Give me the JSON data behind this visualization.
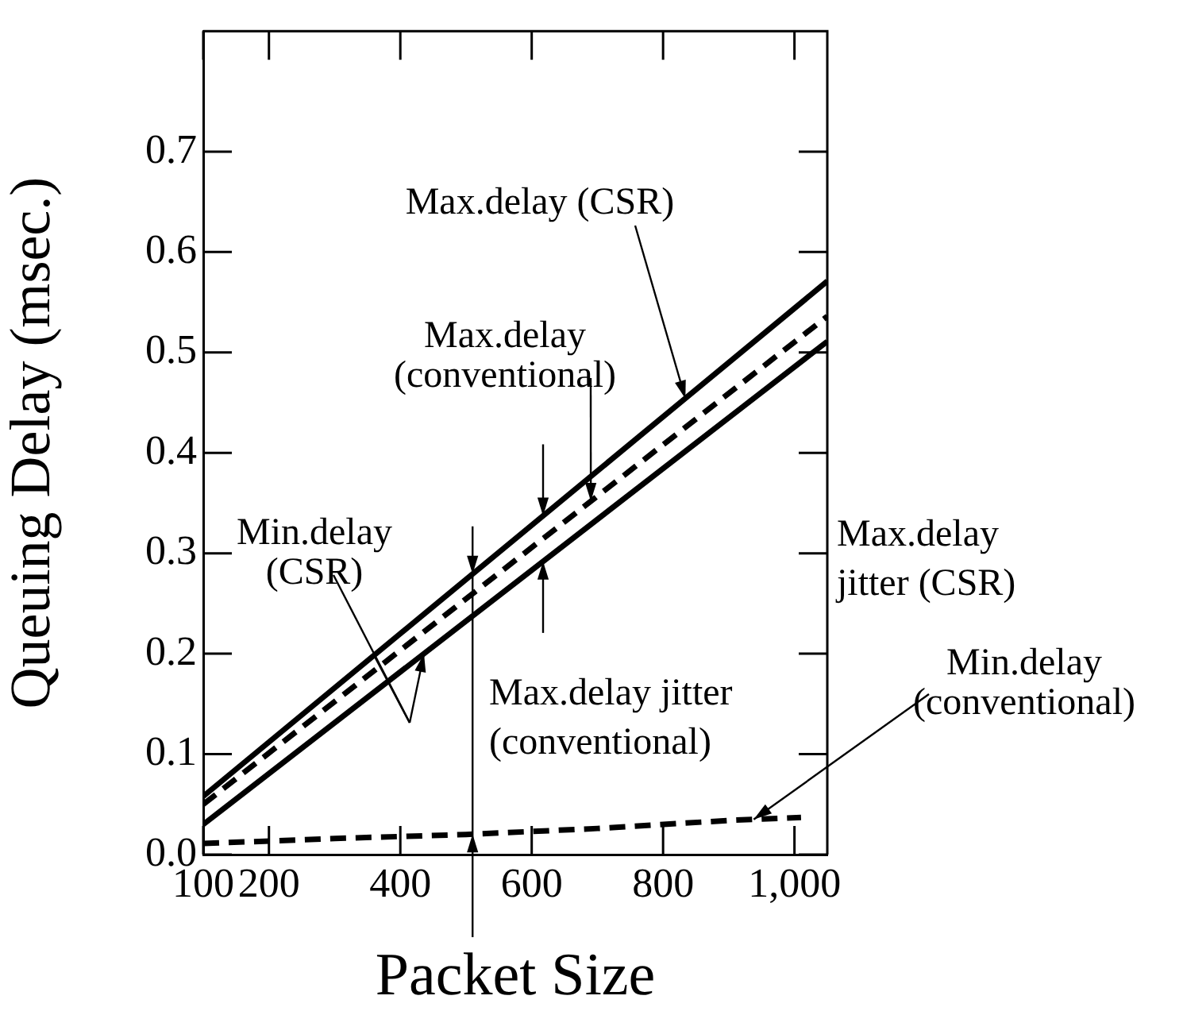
{
  "chart_data": {
    "type": "line",
    "xlabel": "Packet Size",
    "ylabel": "Queuing Delay (msec.)",
    "xlim": [
      100,
      1050
    ],
    "xticks": [
      100,
      200,
      400,
      600,
      800,
      {
        "value": 1000,
        "label": "1,000"
      }
    ],
    "ylim": [
      0,
      0.82
    ],
    "yticks": [
      {
        "value": 0,
        "label": "0.0"
      },
      0.1,
      0.2,
      0.3,
      0.4,
      0.5,
      0.6,
      0.7
    ],
    "grid": false,
    "legend": false,
    "marker": "none",
    "series": [
      {
        "color": "#000000",
        "line_style": "solid",
        "x": [
          100,
          1050
        ],
        "values": [
          0.058,
          0.571
        ]
      },
      {
        "color": "#000000",
        "line_style": "dashed",
        "x": [
          100,
          1050
        ],
        "values": [
          0.05,
          0.536
        ]
      },
      {
        "color": "#000000",
        "line_style": "solid",
        "x": [
          100,
          1050
        ],
        "values": [
          0.03,
          0.511
        ]
      },
      {
        "color": "#000000",
        "line_style": "dashed",
        "x": [
          100,
          300,
          500,
          700,
          900,
          1010
        ],
        "values": [
          0.011,
          0.016,
          0.02,
          0.026,
          0.034,
          0.037
        ]
      }
    ],
    "annotations": [
      {
        "text": "Max.delay (CSR)",
        "x": 834,
        "y": 0.454
      },
      {
        "text": "Max.delay (conventional)",
        "x": 690,
        "y": 0.352
      },
      {
        "text": "Min.delay (CSR)",
        "x": 436,
        "y": 0.2
      },
      {
        "text": "Min.delay (conventional)",
        "x": 938,
        "y": 0.035
      },
      "Max.delay jitter (CSR)",
      {
        "text": "Max.delay jitter (conventional)",
        "x": 510,
        "y": 0.02
      }
    ]
  }
}
